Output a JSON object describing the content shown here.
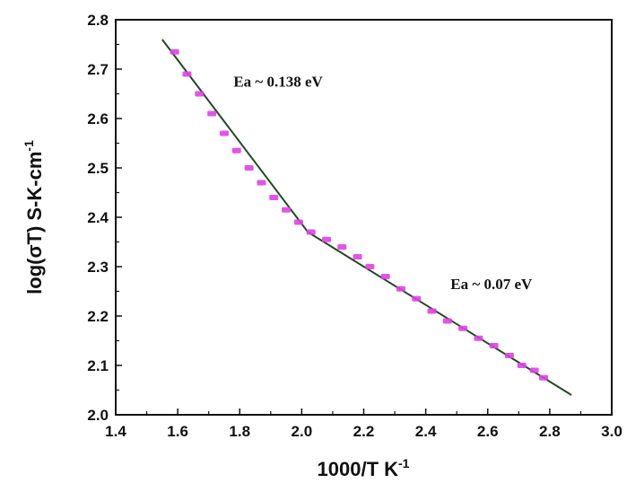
{
  "chart_data": {
    "type": "scatter",
    "title": "",
    "xlabel": "1000/T K",
    "xlabel_superscript": "-1",
    "ylabel": "log(σT) S-K-cm",
    "ylabel_superscript": "-1",
    "xlim": [
      1.4,
      3.0
    ],
    "ylim": [
      2.0,
      2.8
    ],
    "xticks": [
      1.4,
      1.6,
      1.8,
      2.0,
      2.2,
      2.4,
      2.6,
      2.8,
      3.0
    ],
    "xtick_labels": [
      "1.4",
      "1.6",
      "1.8",
      "2.0",
      "2.2",
      "2.4",
      "2.6",
      "2.8",
      "3.0"
    ],
    "yticks": [
      2.0,
      2.1,
      2.2,
      2.3,
      2.4,
      2.5,
      2.6,
      2.7,
      2.8
    ],
    "ytick_labels": [
      "2.0",
      "2.1",
      "2.2",
      "2.3",
      "2.4",
      "2.5",
      "2.6",
      "2.7",
      "2.8"
    ],
    "grid": false,
    "legend": "none",
    "colors": {
      "points": "#e040e8",
      "fit": "#1f4a1f",
      "axis": "#111111"
    },
    "series": [
      {
        "kind": "points",
        "x": [
          1.59,
          1.63,
          1.67,
          1.71,
          1.75,
          1.79,
          1.83,
          1.87,
          1.91,
          1.95,
          1.99,
          2.03,
          2.08,
          2.13,
          2.18,
          2.22,
          2.27,
          2.32,
          2.37,
          2.42,
          2.47,
          2.52,
          2.57,
          2.62,
          2.67,
          2.71,
          2.75,
          2.78
        ],
        "y": [
          2.735,
          2.69,
          2.65,
          2.61,
          2.57,
          2.535,
          2.5,
          2.47,
          2.44,
          2.415,
          2.39,
          2.37,
          2.355,
          2.34,
          2.32,
          2.3,
          2.28,
          2.255,
          2.235,
          2.21,
          2.19,
          2.175,
          2.155,
          2.14,
          2.12,
          2.1,
          2.09,
          2.075
        ]
      },
      {
        "kind": "fit-line",
        "x": [
          1.55,
          2.02,
          2.87
        ],
        "y": [
          2.76,
          2.37,
          2.04
        ]
      }
    ],
    "annotations": [
      {
        "text": "Ea ~ 0.138 eV",
        "x": 1.78,
        "y": 2.665
      },
      {
        "text": "Ea ~ 0.07 eV",
        "x": 2.48,
        "y": 2.255
      }
    ]
  }
}
